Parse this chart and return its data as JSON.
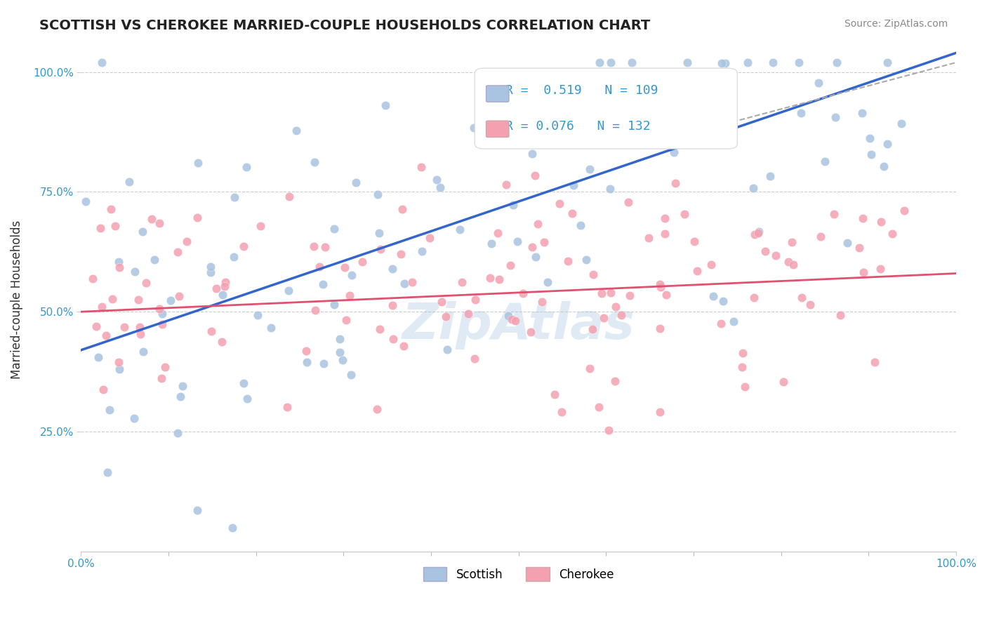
{
  "title": "SCOTTISH VS CHEROKEE MARRIED-COUPLE HOUSEHOLDS CORRELATION CHART",
  "source_text": "Source: ZipAtlas.com",
  "xlabel": "",
  "ylabel": "Married-couple Households",
  "xlim": [
    0.0,
    1.0
  ],
  "ylim": [
    0.0,
    1.05
  ],
  "x_tick_labels": [
    "0.0%",
    "100.0%"
  ],
  "y_tick_labels": [
    "25.0%",
    "50.0%",
    "75.0%",
    "100.0%"
  ],
  "y_ticks": [
    0.25,
    0.5,
    0.75,
    1.0
  ],
  "legend_entries": [
    {
      "label": "R =  0.519   N = 109",
      "color": "#a8c4e0"
    },
    {
      "label": "R = 0.076   N = 132",
      "color": "#f4a0b0"
    }
  ],
  "legend_labels_bottom": [
    "Scottish",
    "Cherokee"
  ],
  "watermark_text": "ZipAtlas",
  "blue_color": "#6699cc",
  "pink_color": "#f08080",
  "blue_scatter_color": "#a8c4e0",
  "pink_scatter_color": "#f4a0b0",
  "blue_line_color": "#3366cc",
  "pink_line_color": "#e05070",
  "dashed_line_color": "#aaaaaa",
  "grid_color": "#cccccc",
  "background_color": "#ffffff",
  "title_fontsize": 14,
  "R_blue": 0.519,
  "N_blue": 109,
  "R_pink": 0.076,
  "N_pink": 132,
  "blue_intercept": 0.42,
  "blue_slope": 0.62,
  "pink_intercept": 0.5,
  "pink_slope": 0.08
}
